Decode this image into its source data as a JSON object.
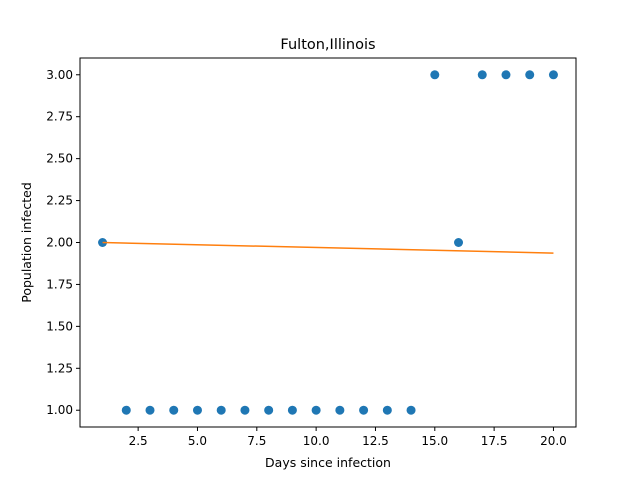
{
  "chart_data": {
    "type": "scatter",
    "title": "Fulton,Illinois",
    "xlabel": "Days since infection",
    "ylabel": "Population infected",
    "xlim": [
      0.05,
      20.95
    ],
    "ylim": [
      0.9,
      3.1
    ],
    "xticks": [
      2.5,
      5.0,
      7.5,
      10.0,
      12.5,
      15.0,
      17.5,
      20.0
    ],
    "xtick_labels": [
      "2.5",
      "5.0",
      "7.5",
      "10.0",
      "12.5",
      "15.0",
      "17.5",
      "20.0"
    ],
    "yticks": [
      1.0,
      1.25,
      1.5,
      1.75,
      2.0,
      2.25,
      2.5,
      2.75,
      3.0
    ],
    "ytick_labels": [
      "1.00",
      "1.25",
      "1.50",
      "1.75",
      "2.00",
      "2.25",
      "2.50",
      "2.75",
      "3.00"
    ],
    "grid": false,
    "series": [
      {
        "kind": "scatter",
        "color": "#1f77b4",
        "points": [
          [
            1,
            2
          ],
          [
            2,
            1
          ],
          [
            3,
            1
          ],
          [
            4,
            1
          ],
          [
            5,
            1
          ],
          [
            6,
            1
          ],
          [
            7,
            1
          ],
          [
            8,
            1
          ],
          [
            9,
            1
          ],
          [
            10,
            1
          ],
          [
            11,
            1
          ],
          [
            12,
            1
          ],
          [
            13,
            1
          ],
          [
            14,
            1
          ],
          [
            15,
            3
          ],
          [
            16,
            2
          ],
          [
            17,
            3
          ],
          [
            18,
            3
          ],
          [
            19,
            3
          ],
          [
            20,
            3
          ]
        ]
      },
      {
        "kind": "line",
        "color": "#ff7f0e",
        "points": [
          [
            1,
            2.0
          ],
          [
            20,
            1.937
          ]
        ]
      }
    ]
  }
}
